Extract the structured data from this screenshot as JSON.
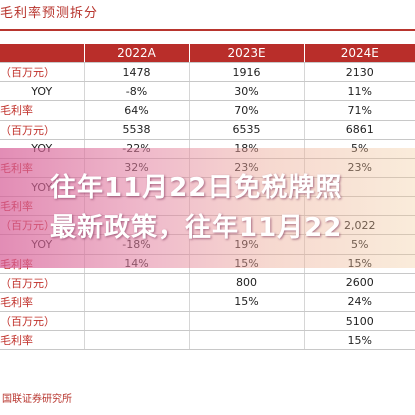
{
  "title": "毛利率预测拆分",
  "table": {
    "headers": [
      "",
      "2022A",
      "2023E",
      "2024E"
    ],
    "rows": [
      {
        "label": "（百万元）",
        "plain": false,
        "values": [
          "1478",
          "1916",
          "2130"
        ]
      },
      {
        "label": "YOY",
        "plain": true,
        "values": [
          "-8%",
          "30%",
          "11%"
        ]
      },
      {
        "label": "毛利率",
        "plain": false,
        "values": [
          "64%",
          "70%",
          "71%"
        ]
      },
      {
        "label": "（百万元）",
        "plain": false,
        "values": [
          "5538",
          "6535",
          "6861"
        ]
      },
      {
        "label": "YOY",
        "plain": true,
        "values": [
          "-22%",
          "18%",
          "5%"
        ]
      },
      {
        "label": "毛利率",
        "plain": false,
        "values": [
          "32%",
          "23%",
          "23%"
        ]
      },
      {
        "label": "YOY",
        "plain": true,
        "values": [
          "",
          "",
          ""
        ]
      },
      {
        "label": "毛利率",
        "plain": false,
        "values": [
          "",
          "",
          ""
        ]
      },
      {
        "label": "（百万元）",
        "plain": false,
        "values": [
          "",
          "",
          "2,022"
        ]
      },
      {
        "label": "YOY",
        "plain": true,
        "values": [
          "-18%",
          "19%",
          "5%"
        ]
      },
      {
        "label": "毛利率",
        "plain": false,
        "values": [
          "14%",
          "15%",
          "15%"
        ]
      },
      {
        "label": "（百万元）",
        "plain": false,
        "values": [
          "",
          "800",
          "2600"
        ]
      },
      {
        "label": "毛利率",
        "plain": false,
        "values": [
          "",
          "15%",
          "24%"
        ]
      },
      {
        "label": "（百万元）",
        "plain": false,
        "values": [
          "",
          "",
          "5100"
        ]
      },
      {
        "label": "毛利率",
        "plain": false,
        "values": [
          "",
          "",
          "15%"
        ]
      }
    ]
  },
  "overlay": {
    "line1": "往年11月22日免税牌照",
    "line2": "最新政策，往年11月22"
  },
  "source": "国联证券研究所"
}
